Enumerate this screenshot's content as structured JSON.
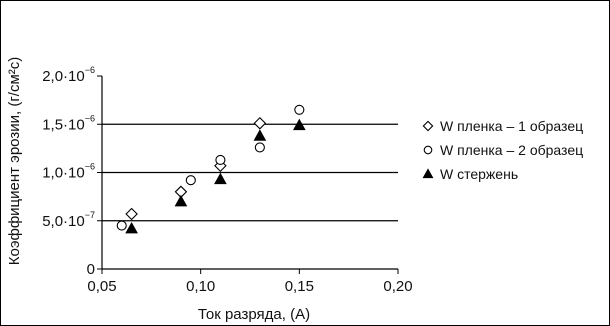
{
  "chart_data": {
    "type": "scatter",
    "xlabel": "Ток разряда, (A)",
    "ylabel": "Коэффициент эрозии, (г/см²с)",
    "xlim": [
      0.05,
      0.2
    ],
    "ylim": [
      0,
      2e-06
    ],
    "x_ticks": [
      {
        "value": 0.05,
        "label": "0,05"
      },
      {
        "value": 0.1,
        "label": "0,10"
      },
      {
        "value": 0.15,
        "label": "0,15"
      },
      {
        "value": 0.2,
        "label": "0,20"
      }
    ],
    "y_ticks": [
      {
        "value": 0,
        "mant": "0",
        "exp": ""
      },
      {
        "value": 5e-07,
        "mant": "5,0·10",
        "exp": "−7"
      },
      {
        "value": 1e-06,
        "mant": "1,0·10",
        "exp": "−6"
      },
      {
        "value": 1.5e-06,
        "mant": "1,5·10",
        "exp": "−6"
      },
      {
        "value": 2e-06,
        "mant": "2,0·10",
        "exp": "−6"
      }
    ],
    "gridlines_y": [
      5e-07,
      1e-06,
      1.5e-06
    ],
    "legend_position": "right",
    "series": [
      {
        "name": "W пленка – 1 образец",
        "marker": "diamond-open",
        "points": [
          {
            "x": 0.065,
            "y": 5.7e-07
          },
          {
            "x": 0.09,
            "y": 8e-07
          },
          {
            "x": 0.11,
            "y": 1.07e-06
          },
          {
            "x": 0.13,
            "y": 1.51e-06
          }
        ]
      },
      {
        "name": "W пленка – 2 образец",
        "marker": "circle-open",
        "points": [
          {
            "x": 0.06,
            "y": 4.5e-07
          },
          {
            "x": 0.095,
            "y": 9.2e-07
          },
          {
            "x": 0.11,
            "y": 1.13e-06
          },
          {
            "x": 0.13,
            "y": 1.26e-06
          },
          {
            "x": 0.15,
            "y": 1.65e-06
          }
        ]
      },
      {
        "name": "W стержень",
        "marker": "triangle-filled",
        "points": [
          {
            "x": 0.065,
            "y": 4.2e-07
          },
          {
            "x": 0.09,
            "y": 7e-07
          },
          {
            "x": 0.11,
            "y": 9.3e-07
          },
          {
            "x": 0.13,
            "y": 1.38e-06
          },
          {
            "x": 0.15,
            "y": 1.49e-06
          }
        ]
      }
    ]
  }
}
